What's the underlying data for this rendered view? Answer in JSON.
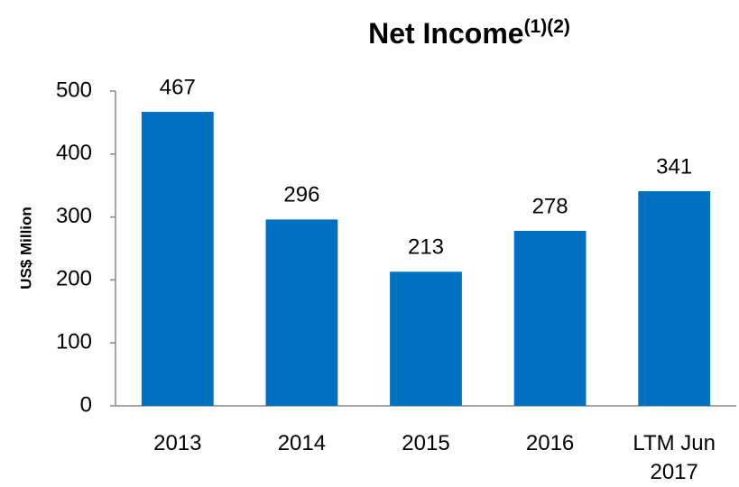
{
  "chart_data": {
    "type": "bar",
    "title": "Net Income",
    "title_notes": "(1)(2)",
    "y_label": "US$ Million",
    "categories": [
      "2013",
      "2014",
      "2015",
      "2016",
      "LTM Jun 2017"
    ],
    "values": [
      467,
      296,
      213,
      278,
      341
    ],
    "color": "#0070c0",
    "ylim": [
      0,
      500
    ],
    "yticks": [
      0,
      100,
      200,
      300,
      400,
      500
    ],
    "grid": false
  }
}
